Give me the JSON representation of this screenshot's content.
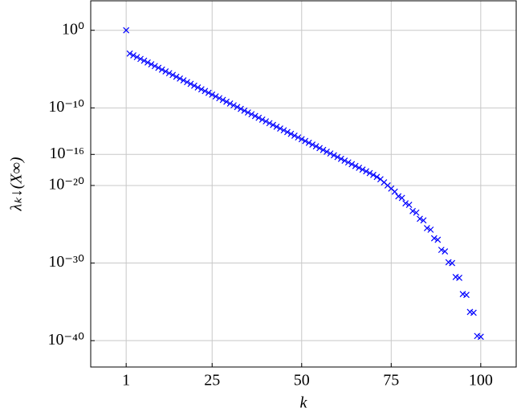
{
  "chart_data": {
    "type": "scatter",
    "xlabel": "k",
    "ylabel": "λₖ↓(X∞)",
    "xlim": [
      -8.9,
      109.9
    ],
    "xticks": [
      1,
      25,
      50,
      75,
      100
    ],
    "ylim": [
      4e-44,
      6300.0
    ],
    "log_y": true,
    "yticks": [
      {
        "value": 1,
        "label": "10⁰"
      },
      {
        "value": 1e-10,
        "label": "10⁻¹⁰"
      },
      {
        "value": 1e-16,
        "label": "10⁻¹⁶"
      },
      {
        "value": 1e-20,
        "label": "10⁻²⁰"
      },
      {
        "value": 1e-30,
        "label": "10⁻³⁰"
      },
      {
        "value": 1e-40,
        "label": "10⁻⁴⁰"
      }
    ],
    "grid": true,
    "series": [
      {
        "color": "#0000ff",
        "x": [
          1,
          2,
          3,
          4,
          5,
          6,
          7,
          8,
          9,
          10,
          11,
          12,
          13,
          14,
          15,
          16,
          17,
          18,
          19,
          20,
          21,
          22,
          23,
          24,
          25,
          26,
          27,
          28,
          29,
          30,
          31,
          32,
          33,
          34,
          35,
          36,
          37,
          38,
          39,
          40,
          41,
          42,
          43,
          44,
          45,
          46,
          47,
          48,
          49,
          50,
          51,
          52,
          53,
          54,
          55,
          56,
          57,
          58,
          59,
          60,
          61,
          62,
          63,
          64,
          65,
          66,
          67,
          68,
          69,
          70,
          71,
          72,
          73,
          74,
          75,
          76,
          77,
          78,
          79,
          80,
          81,
          82,
          83,
          84,
          85,
          86,
          87,
          88,
          89,
          90,
          91,
          92,
          93,
          94,
          95,
          96,
          97,
          98,
          99,
          100
        ],
        "values": [
          1,
          0.001,
          0.000589,
          0.000347,
          0.000204,
          0.00012,
          7.08e-05,
          4.17e-05,
          2.45e-05,
          1.45e-05,
          8.51e-06,
          5.01e-06,
          2.95e-06,
          1.74e-06,
          1.02e-06,
          6.03e-07,
          3.55e-07,
          2.09e-07,
          1.23e-07,
          7.24e-08,
          4.27e-08,
          2.51e-08,
          1.48e-08,
          8.71e-09,
          5.13e-09,
          3.02e-09,
          1.78e-09,
          1.05e-09,
          6.17e-10,
          3.63e-10,
          2.14e-10,
          1.26e-10,
          7.41e-11,
          4.37e-11,
          2.57e-11,
          1.51e-11,
          8.91e-12,
          5.25e-12,
          3.09e-12,
          1.82e-12,
          1.07e-12,
          6.31e-13,
          3.72e-13,
          2.19e-13,
          1.29e-13,
          7.59e-14,
          4.47e-14,
          2.63e-14,
          1.55e-14,
          9.12e-15,
          5.37e-15,
          3.16e-15,
          1.86e-15,
          1.1e-15,
          6.46e-16,
          3.8e-16,
          2.24e-16,
          1.32e-16,
          7.76e-17,
          4.57e-17,
          2.69e-17,
          1.58e-17,
          9.33e-18,
          5.5e-18,
          3.24e-18,
          1.91e-18,
          1.12e-18,
          6.61e-19,
          3.89e-19,
          2.29e-19,
          1.26e-19,
          6.31e-20,
          2.51e-20,
          1e-20,
          3.98e-21,
          1.58e-21,
          3.98e-22,
          2.51e-22,
          5.01e-23,
          3.16e-23,
          5.01e-24,
          3.16e-24,
          5.01e-25,
          3.16e-25,
          3.16e-26,
          2e-26,
          1.58e-27,
          1e-27,
          5.01e-29,
          3.16e-29,
          1.26e-30,
          1e-30,
          1.58e-32,
          1.26e-32,
          1e-34,
          7.94e-35,
          5.01e-37,
          3.98e-37,
          3.98e-40,
          3.16e-40
        ]
      }
    ]
  }
}
